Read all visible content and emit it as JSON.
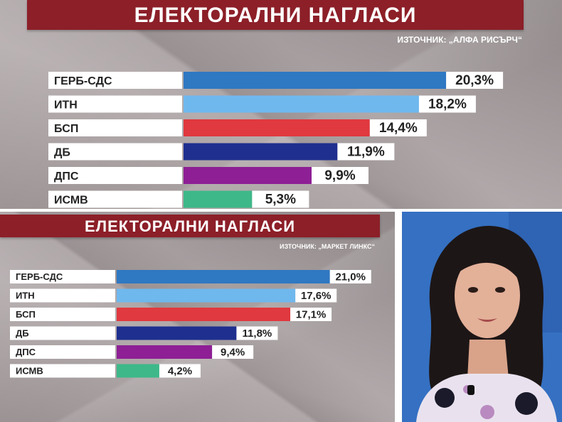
{
  "chart_data": [
    {
      "type": "bar",
      "orientation": "horizontal",
      "title": "ЕЛЕКТОРАЛНИ НАГЛАСИ",
      "source": "ИЗТОЧНИК: „АЛФА РИСЪРЧ“",
      "categories": [
        "ГЕРБ-СДС",
        "ИТН",
        "БСП",
        "ДБ",
        "ДПС",
        "ИСМВ"
      ],
      "values": [
        20.3,
        18.2,
        14.4,
        11.9,
        9.9,
        5.3
      ],
      "value_labels": [
        "20,3%",
        "18,2%",
        "14,4%",
        "11,9%",
        "9,9%",
        "5,3%"
      ],
      "colors": [
        "#2f78c2",
        "#6fb8ee",
        "#e0393f",
        "#1f2f8f",
        "#8e1f95",
        "#3eb889"
      ],
      "xlim": [
        0,
        22
      ],
      "grid": false,
      "legend": "none"
    },
    {
      "type": "bar",
      "orientation": "horizontal",
      "title": "ЕЛЕКТОРАЛНИ НАГЛАСИ",
      "source": "ИЗТОЧНИК: „МАРКЕТ ЛИНКС“",
      "categories": [
        "ГЕРБ-СДС",
        "ИТН",
        "БСП",
        "ДБ",
        "ДПС",
        "ИСМВ"
      ],
      "values": [
        21.0,
        17.6,
        17.1,
        11.8,
        9.4,
        4.2
      ],
      "value_labels": [
        "21,0%",
        "17,6%",
        "17,1%",
        "11,8%",
        "9,4%",
        "4,2%"
      ],
      "colors": [
        "#2f78c2",
        "#6fb8ee",
        "#e0393f",
        "#1f2f8f",
        "#8e1f95",
        "#3eb889"
      ],
      "xlim": [
        0,
        22
      ],
      "grid": false,
      "legend": "none"
    }
  ]
}
